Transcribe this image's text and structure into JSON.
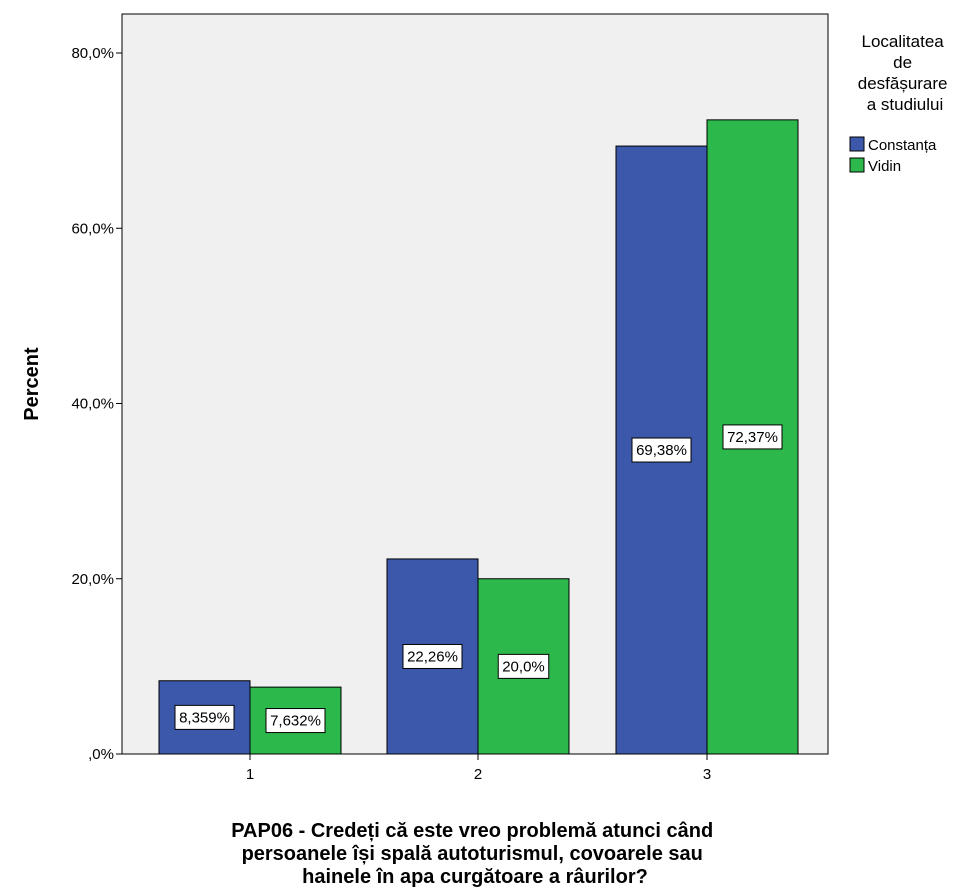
{
  "chart_data": {
    "type": "bar",
    "categories": [
      "1",
      "2",
      "3"
    ],
    "series": [
      {
        "name": "Constanța",
        "color": "#3c58ab",
        "values": [
          8.359,
          22.26,
          69.38
        ],
        "labels": [
          "8,359%",
          "22,26%",
          "69,38%"
        ]
      },
      {
        "name": "Vidin",
        "color": "#2db84b",
        "values": [
          7.632,
          20.0,
          72.37
        ],
        "labels": [
          "7,632%",
          "20,0%",
          "72,37%"
        ]
      }
    ],
    "ylabel": "Percent",
    "xlabel_lines": [
      "PAP06 - Credeți că este vreo problemă atunci când",
      "persoanele își spală autoturismul, covoarele sau",
      "hainele în apa curgătoare a râurilor?"
    ],
    "ylim": [
      0,
      80
    ],
    "yticks": [
      0,
      20,
      40,
      60,
      80
    ],
    "ytick_labels": [
      ",0%",
      "20,0%",
      "40,0%",
      "60,0%",
      "80,0%"
    ],
    "legend_title_lines": [
      "Localitatea",
      "de",
      "desfășurare",
      "a studiului"
    ],
    "legend_position": "right",
    "plot_background": "#f0f0f0",
    "grid": false
  }
}
